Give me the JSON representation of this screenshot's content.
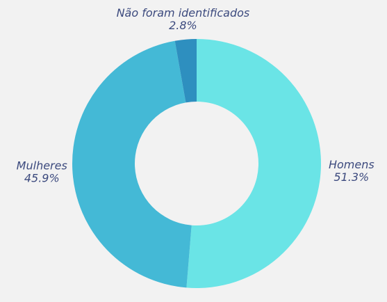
{
  "chart_data": {
    "type": "donut",
    "title": "",
    "categories": [
      "Homens",
      "Mulheres",
      "Não foram identificados"
    ],
    "values": [
      51.3,
      45.9,
      2.8
    ],
    "value_labels": [
      "51.3%",
      "45.9%",
      "2.8%"
    ],
    "colors": [
      "#6ae4e6",
      "#44b9d6",
      "#2e8fbf"
    ],
    "legend": "none",
    "label_placement": "outside"
  }
}
